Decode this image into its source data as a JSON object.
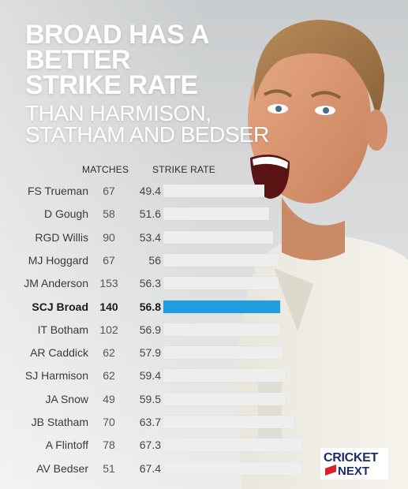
{
  "title": {
    "line1": "BROAD HAS A",
    "line2": "BETTER",
    "line3": "STRIKE RATE",
    "line4": "THAN HARMISON,",
    "line5": "STATHAM AND BEDSER"
  },
  "headers": {
    "matches": "MATCHES",
    "strike_rate": "STRIKE RATE"
  },
  "logo": {
    "top": "CRICKET",
    "bottom": "NEXT"
  },
  "colors": {
    "highlight": "#1e9de0",
    "bar": "#eeeeee",
    "title": "#ffffff"
  },
  "chart_data": {
    "type": "bar",
    "orientation": "horizontal",
    "categories": [
      "FS Trueman",
      "D Gough",
      "RGD Willis",
      "MJ Hoggard",
      "JM Anderson",
      "SCJ Broad",
      "IT Botham",
      "AR Caddick",
      "SJ Harmison",
      "JA Snow",
      "JB Statham",
      "A Flintoff",
      "AV Bedser"
    ],
    "matches": [
      "67",
      "58",
      "90",
      "67",
      "153",
      "140",
      "102",
      "62",
      "62",
      "49",
      "70",
      "78",
      "51"
    ],
    "values": [
      49.4,
      51.6,
      53.4,
      56,
      56.3,
      56.8,
      56.9,
      57.9,
      59.4,
      59.5,
      63.7,
      67.3,
      67.4
    ],
    "value_labels": [
      "49.4",
      "51.6",
      "53.4",
      "56",
      "56.3",
      "56.8",
      "56.9",
      "57.9",
      "59.4",
      "59.5",
      "63.7",
      "67.3",
      "67.4"
    ],
    "highlight": "SCJ Broad",
    "xlim": [
      0,
      70
    ]
  }
}
